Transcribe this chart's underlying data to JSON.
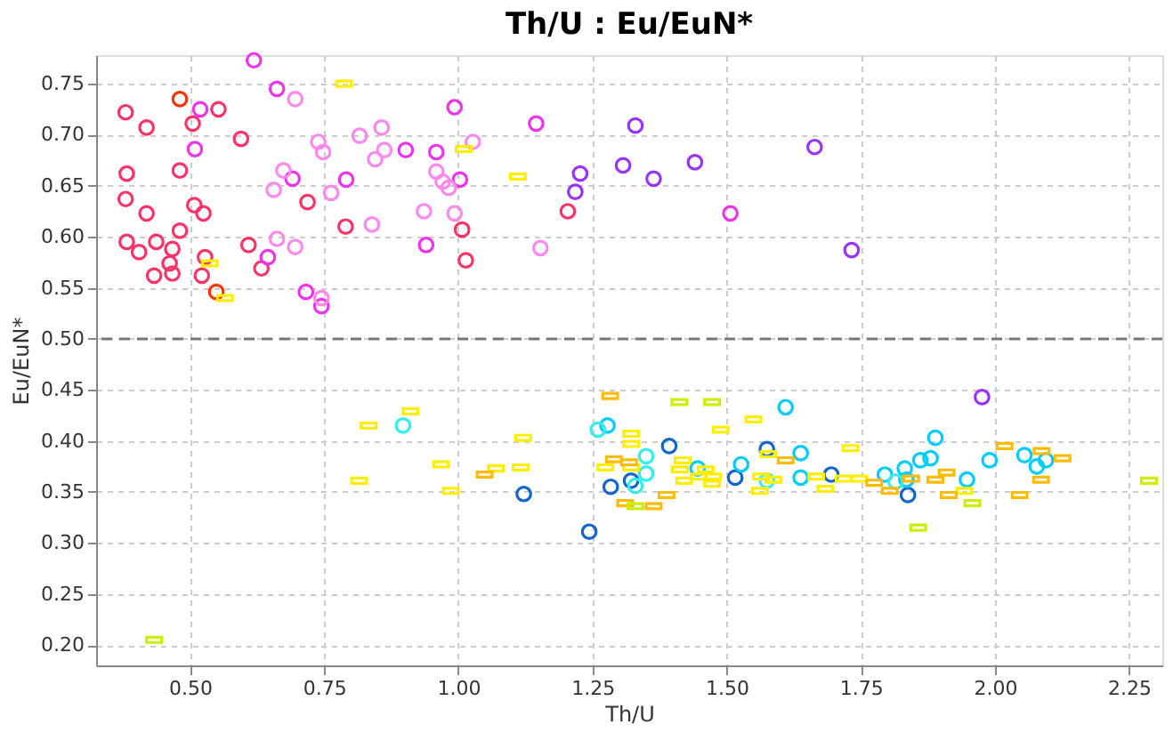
{
  "chart_data": {
    "type": "scatter",
    "title": "Th/U : Eu/EuN*",
    "xlabel": "Th/U",
    "ylabel": "Eu/EuN*",
    "xlim": [
      0.325,
      2.312
    ],
    "ylim": [
      0.18,
      0.778
    ],
    "xticks": [
      {
        "value": 0.5,
        "label": "0.50"
      },
      {
        "value": 0.75,
        "label": "0.75"
      },
      {
        "value": 1.0,
        "label": "1.00"
      },
      {
        "value": 1.25,
        "label": "1.25"
      },
      {
        "value": 1.5,
        "label": "1.50"
      },
      {
        "value": 1.75,
        "label": "1.75"
      },
      {
        "value": 2.0,
        "label": "2.00"
      },
      {
        "value": 2.25,
        "label": "2.25"
      }
    ],
    "yticks": [
      {
        "value": 0.2,
        "label": "0.20"
      },
      {
        "value": 0.25,
        "label": "0.25"
      },
      {
        "value": 0.3,
        "label": "0.30"
      },
      {
        "value": 0.35,
        "label": "0.35"
      },
      {
        "value": 0.4,
        "label": "0.40"
      },
      {
        "value": 0.45,
        "label": "0.45"
      },
      {
        "value": 0.5,
        "label": "0.50"
      },
      {
        "value": 0.55,
        "label": "0.55"
      },
      {
        "value": 0.6,
        "label": "0.60"
      },
      {
        "value": 0.65,
        "label": "0.65"
      },
      {
        "value": 0.7,
        "label": "0.70"
      },
      {
        "value": 0.75,
        "label": "0.75"
      }
    ],
    "grid": true,
    "ref_lines": [
      {
        "axis": "y",
        "value": 0.5,
        "color": "#777777",
        "line_style": "dashed"
      }
    ],
    "series": [
      {
        "color": "#ff3366",
        "marker": "circle",
        "x": [
          0.38,
          0.419,
          0.382,
          0.481,
          0.505,
          0.553,
          0.38,
          0.419,
          0.508,
          0.525,
          0.481,
          0.595,
          0.382,
          0.405,
          0.437,
          0.467,
          0.462,
          0.433,
          0.467,
          0.528,
          0.522,
          0.609,
          0.633,
          0.719,
          0.79,
          1.007,
          1.014,
          1.204
        ],
        "values": [
          0.722,
          0.707,
          0.662,
          0.665,
          0.711,
          0.725,
          0.637,
          0.623,
          0.631,
          0.623,
          0.606,
          0.696,
          0.595,
          0.585,
          0.595,
          0.588,
          0.574,
          0.562,
          0.564,
          0.58,
          0.562,
          0.592,
          0.569,
          0.634,
          0.61,
          0.607,
          0.577,
          0.625
        ]
      },
      {
        "color": "#ff3300",
        "marker": "circle",
        "x": [
          0.481,
          0.549
        ],
        "values": [
          0.735,
          0.546
        ]
      },
      {
        "color": "#ee33ee",
        "marker": "circle",
        "x": [
          0.619,
          0.662,
          0.519,
          0.509,
          0.691,
          0.791,
          0.902,
          0.959,
          0.993,
          1.003,
          0.94,
          0.645,
          0.716,
          0.745,
          1.145,
          1.507
        ],
        "values": [
          0.773,
          0.745,
          0.725,
          0.686,
          0.657,
          0.656,
          0.685,
          0.683,
          0.727,
          0.656,
          0.592,
          0.58,
          0.546,
          0.532,
          0.711,
          0.623
        ]
      },
      {
        "color": "#ff88ee",
        "marker": "circle",
        "x": [
          0.696,
          0.816,
          0.857,
          0.739,
          0.748,
          0.845,
          0.862,
          0.674,
          0.656,
          0.763,
          0.959,
          0.971,
          0.982,
          1.027,
          0.936,
          0.993,
          0.839,
          0.662,
          0.696,
          0.745,
          1.153
        ],
        "values": [
          0.735,
          0.699,
          0.707,
          0.693,
          0.683,
          0.676,
          0.685,
          0.665,
          0.646,
          0.643,
          0.664,
          0.654,
          0.648,
          0.693,
          0.625,
          0.623,
          0.612,
          0.598,
          0.59,
          0.54,
          0.589
        ]
      },
      {
        "color": "#9933ff",
        "marker": "circle",
        "x": [
          1.227,
          1.218,
          1.307,
          1.364,
          1.441,
          1.664,
          1.733,
          1.33,
          1.976
        ],
        "values": [
          0.662,
          0.644,
          0.67,
          0.657,
          0.673,
          0.688,
          0.587,
          0.709,
          0.443
        ]
      },
      {
        "color": "#1166cc",
        "marker": "circle",
        "x": [
          1.122,
          1.244,
          1.284,
          1.322,
          1.393,
          1.516,
          1.575,
          1.695,
          1.838
        ],
        "values": [
          0.348,
          0.311,
          0.355,
          0.361,
          0.395,
          0.364,
          0.392,
          0.367,
          0.347
        ]
      },
      {
        "color": "#00ccff",
        "marker": "circle",
        "x": [
          1.278,
          1.446,
          1.527,
          1.61,
          1.638,
          1.638,
          1.795,
          1.832,
          1.835,
          1.861,
          1.88,
          1.889,
          1.948,
          1.99,
          2.055,
          2.078,
          2.095
        ],
        "values": [
          0.415,
          0.373,
          0.377,
          0.433,
          0.388,
          0.364,
          0.367,
          0.373,
          0.362,
          0.381,
          0.383,
          0.403,
          0.362,
          0.381,
          0.386,
          0.375,
          0.381
        ]
      },
      {
        "color": "#33eeee",
        "marker": "circle",
        "x": [
          0.897,
          1.26,
          1.35,
          1.35,
          1.33,
          1.575,
          1.815
        ],
        "values": [
          0.415,
          0.411,
          0.385,
          0.368,
          0.356,
          0.361,
          0.36
        ]
      },
      {
        "color": "#ffee00",
        "marker": "square",
        "x": [
          0.833,
          0.911,
          0.815,
          0.968,
          0.986,
          1.07,
          1.121,
          1.116,
          1.322,
          1.322,
          1.274,
          1.322,
          1.418,
          1.413,
          1.461,
          1.421,
          1.448,
          1.475,
          1.473,
          1.489,
          1.55,
          1.564,
          1.587,
          1.562,
          1.578,
          1.667,
          1.684,
          1.731,
          1.718,
          1.747,
          1.943,
          0.787,
          1.01,
          0.537,
          0.565,
          1.111
        ],
        "values": [
          0.415,
          0.429,
          0.361,
          0.377,
          0.351,
          0.373,
          0.403,
          0.374,
          0.407,
          0.397,
          0.374,
          0.374,
          0.381,
          0.372,
          0.372,
          0.361,
          0.365,
          0.365,
          0.358,
          0.411,
          0.421,
          0.365,
          0.362,
          0.351,
          0.387,
          0.365,
          0.353,
          0.393,
          0.363,
          0.363,
          0.351,
          0.75,
          0.686,
          0.574,
          0.54,
          0.659
        ]
      },
      {
        "color": "#ffbb00",
        "marker": "square",
        "x": [
          1.049,
          1.283,
          1.29,
          1.318,
          1.311,
          1.364,
          1.388,
          1.61,
          1.844,
          1.775,
          1.804,
          1.91,
          1.889,
          1.914,
          2.018,
          2.087,
          2.086,
          2.046,
          2.126
        ],
        "values": [
          0.367,
          0.444,
          0.382,
          0.379,
          0.339,
          0.336,
          0.347,
          0.381,
          0.363,
          0.359,
          0.351,
          0.369,
          0.362,
          0.347,
          0.395,
          0.39,
          0.362,
          0.347,
          0.383
        ]
      },
      {
        "color": "#ccee00",
        "marker": "square",
        "x": [
          0.433,
          1.412,
          1.473,
          1.33,
          1.958,
          1.857,
          2.287
        ],
        "values": [
          0.205,
          0.438,
          0.438,
          0.336,
          0.339,
          0.315,
          0.361
        ]
      }
    ]
  }
}
